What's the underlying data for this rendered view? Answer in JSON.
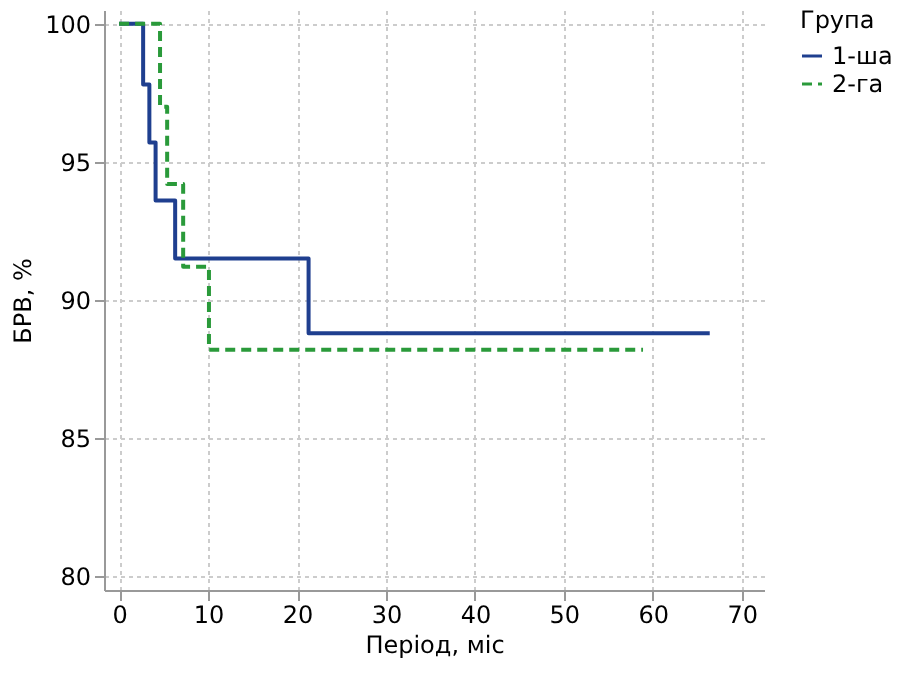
{
  "chart_data": {
    "type": "step",
    "xlabel": "Період, міс",
    "ylabel": "БРВ, %",
    "legend_title": "Група",
    "xlim": [
      -1.7,
      72.5
    ],
    "xticks": [
      0,
      10,
      20,
      30,
      40,
      50,
      60,
      70
    ],
    "ylim": [
      79.5,
      100.5
    ],
    "yticks": [
      80,
      85,
      90,
      95,
      100
    ],
    "grid": true,
    "legend": "right",
    "marker": "none",
    "series": [
      {
        "name": "1-ша",
        "color": "#1f3f8f",
        "line_style": "solid",
        "x": [
          0,
          2.7,
          3.4,
          4.1,
          6.3,
          21.3,
          66.4
        ],
        "values": [
          100,
          97.8,
          95.7,
          93.6,
          91.5,
          88.8,
          88.8
        ]
      },
      {
        "name": "2-га",
        "color": "#2a9a3a",
        "line_style": "dashed",
        "x": [
          0,
          4.6,
          5.4,
          7.2,
          10.1,
          58.9
        ],
        "values": [
          100,
          97.0,
          94.2,
          91.2,
          88.2,
          88.2
        ]
      }
    ]
  }
}
